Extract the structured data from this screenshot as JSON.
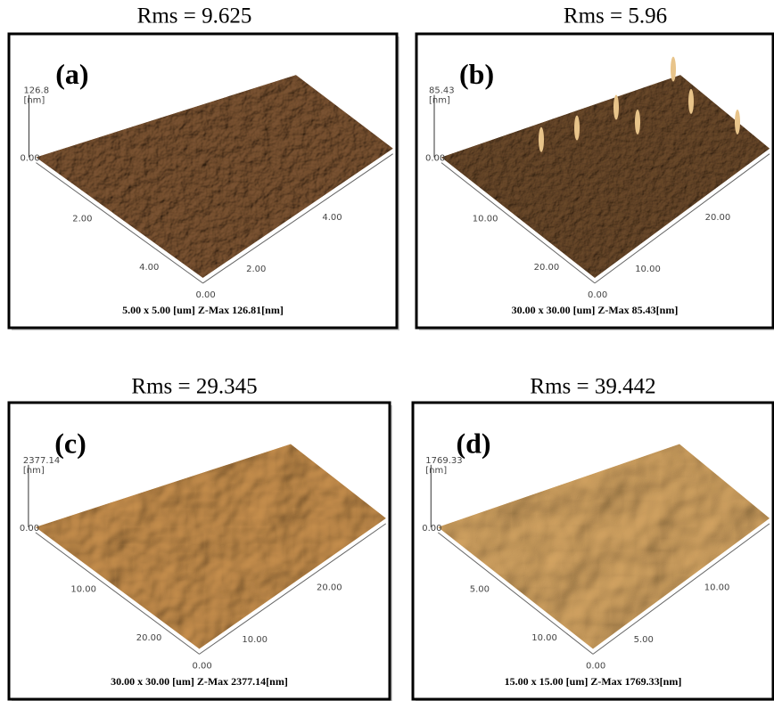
{
  "panels": [
    {
      "rms": "Rms = 9.625",
      "tag": "(a)",
      "z_max": "126.8",
      "z_unit": "[nm]",
      "z_min": "0.00",
      "left_axis": [
        "2.00",
        "4.00"
      ],
      "right_axis": [
        "4.00",
        "2.00"
      ],
      "origin": "0.00",
      "caption": "5.00 x 5.00 [um] Z-Max 126.81[nm]"
    },
    {
      "rms": "Rms = 5.96",
      "tag": "(b)",
      "z_max": "85.43",
      "z_unit": "[nm]",
      "z_min": "0.00",
      "left_axis": [
        "10.00",
        "20.00"
      ],
      "right_axis": [
        "20.00",
        "10.00"
      ],
      "origin": "0.00",
      "caption": "30.00 x 30.00 [um] Z-Max 85.43[nm]"
    },
    {
      "rms": "Rms = 29.345",
      "tag": "(c)",
      "z_max": "2377.14",
      "z_unit": "[nm]",
      "z_min": "0.00",
      "left_axis": [
        "10.00",
        "20.00"
      ],
      "right_axis": [
        "20.00",
        "10.00"
      ],
      "origin": "0.00",
      "caption": "30.00 x 30.00 [um] Z-Max 2377.14[nm]"
    },
    {
      "rms": "Rms = 39.442",
      "tag": "(d)",
      "z_max": "1769.33",
      "z_unit": "[nm]",
      "z_min": "0.00",
      "left_axis": [
        "5.00",
        "10.00"
      ],
      "right_axis": [
        "10.00",
        "5.00"
      ],
      "origin": "0.00",
      "caption": "15.00 x 15.00 [um] Z-Max 1769.33[nm]"
    }
  ]
}
